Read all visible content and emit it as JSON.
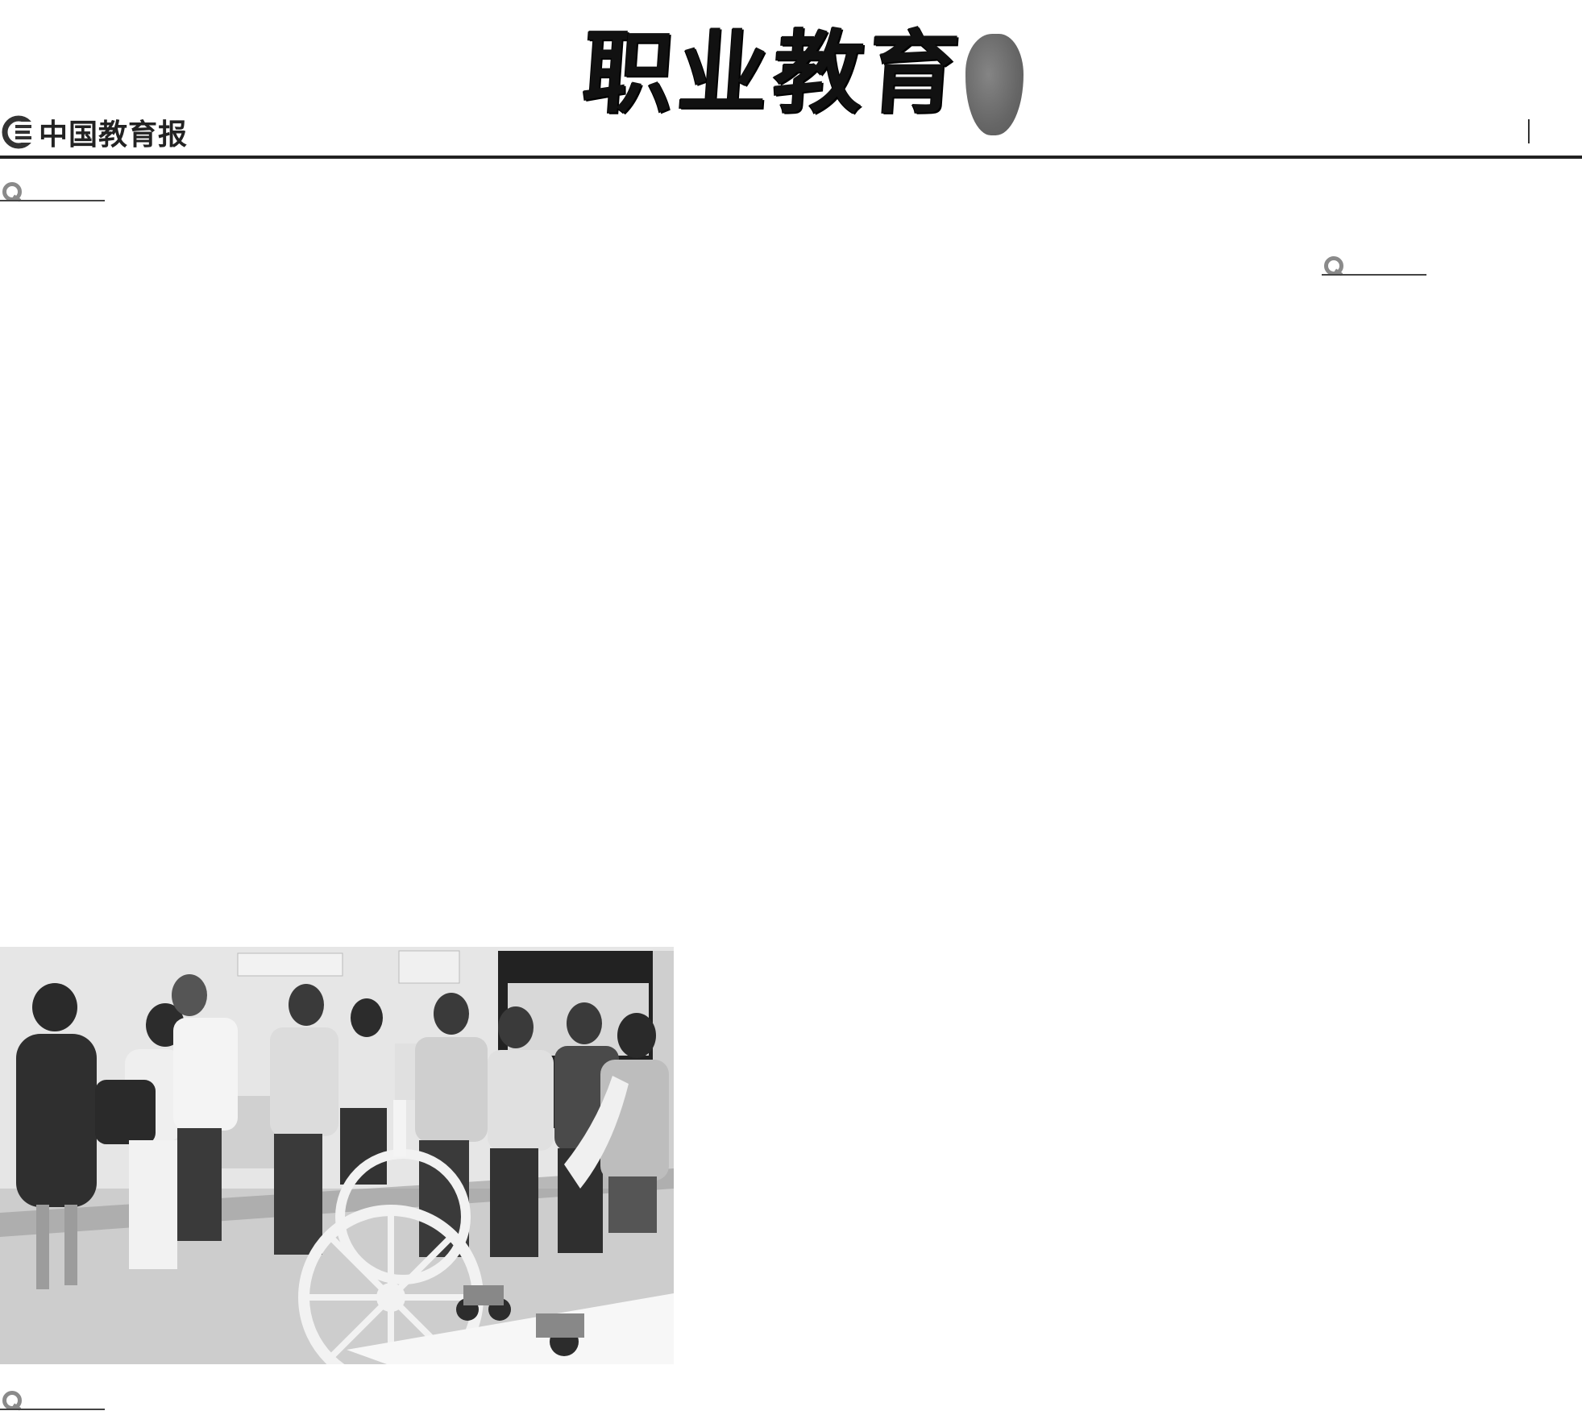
{
  "masthead": {
    "title": "职业教育",
    "newspaper_name": "中国教育报"
  },
  "photo": {
    "icon": "photo-people-robot-exhibit",
    "tone": "grayscale"
  },
  "colors": {
    "ink": "#111111",
    "seal_gray": "#555555",
    "marker_gray": "#8a8a8a"
  }
}
